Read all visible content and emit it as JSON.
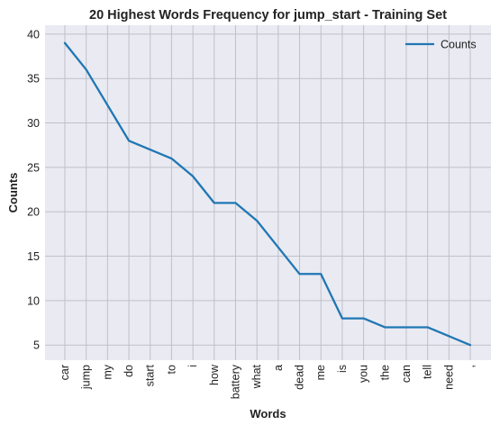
{
  "chart_data": {
    "type": "line",
    "title": "20 Highest Words Frequency for jump_start - Training Set",
    "xlabel": "Words",
    "ylabel": "Counts",
    "categories": [
      "car",
      "jump",
      "my",
      "do",
      "start",
      "to",
      "i",
      "how",
      "battery",
      "what",
      "a",
      "dead",
      "me",
      "is",
      "you",
      "the",
      "can",
      "tell",
      "need",
      ","
    ],
    "series": [
      {
        "name": "Counts",
        "values": [
          39,
          36,
          32,
          28,
          27,
          26,
          24,
          21,
          21,
          19,
          16,
          13,
          13,
          8,
          8,
          7,
          7,
          7,
          6,
          5
        ],
        "color": "#1f77b4"
      }
    ],
    "yticks": [
      5,
      10,
      15,
      20,
      25,
      30,
      35,
      40
    ],
    "ylim": [
      3.3,
      41.0
    ],
    "grid": true,
    "legend_position": "top-right",
    "style": {
      "plot_bg": "#eaeaf2",
      "grid_color": "#c0c0c8"
    }
  }
}
